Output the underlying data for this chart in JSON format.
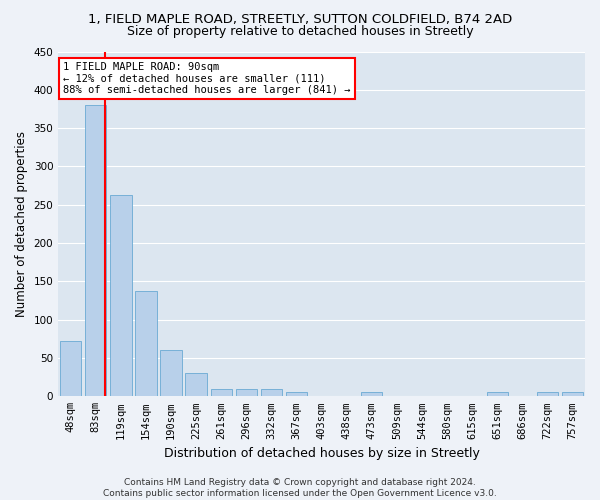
{
  "title1": "1, FIELD MAPLE ROAD, STREETLY, SUTTON COLDFIELD, B74 2AD",
  "title2": "Size of property relative to detached houses in Streetly",
  "xlabel": "Distribution of detached houses by size in Streetly",
  "ylabel": "Number of detached properties",
  "bar_labels": [
    "48sqm",
    "83sqm",
    "119sqm",
    "154sqm",
    "190sqm",
    "225sqm",
    "261sqm",
    "296sqm",
    "332sqm",
    "367sqm",
    "403sqm",
    "438sqm",
    "473sqm",
    "509sqm",
    "544sqm",
    "580sqm",
    "615sqm",
    "651sqm",
    "686sqm",
    "722sqm",
    "757sqm"
  ],
  "bar_values": [
    72,
    380,
    263,
    137,
    60,
    31,
    10,
    10,
    10,
    5,
    0,
    0,
    5,
    0,
    0,
    0,
    0,
    5,
    0,
    5,
    5
  ],
  "bar_color": "#b8d0ea",
  "bar_edge_color": "#6aaad4",
  "bar_width": 0.85,
  "ylim": [
    0,
    450
  ],
  "yticks": [
    0,
    50,
    100,
    150,
    200,
    250,
    300,
    350,
    400,
    450
  ],
  "red_line_x": 1.35,
  "annotation_text": "1 FIELD MAPLE ROAD: 90sqm\n← 12% of detached houses are smaller (111)\n88% of semi-detached houses are larger (841) →",
  "annotation_box_color": "white",
  "annotation_box_edge": "red",
  "footer1": "Contains HM Land Registry data © Crown copyright and database right 2024.",
  "footer2": "Contains public sector information licensed under the Open Government Licence v3.0.",
  "bg_color": "#eef2f8",
  "plot_bg_color": "#dce6f0",
  "grid_color": "#ffffff",
  "title_fontsize": 9.5,
  "subtitle_fontsize": 9,
  "tick_fontsize": 7.5,
  "ylabel_fontsize": 8.5,
  "xlabel_fontsize": 9,
  "footer_fontsize": 6.5
}
